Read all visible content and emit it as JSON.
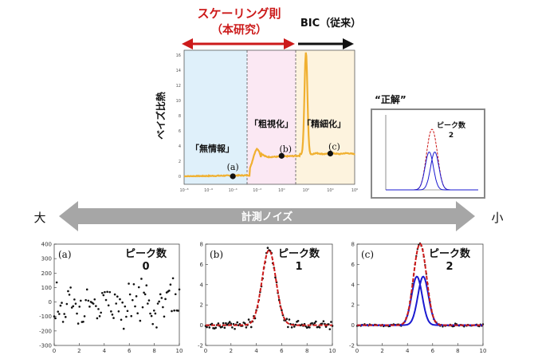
{
  "header": {
    "scaling_law": "スケーリング則",
    "this_work": "（本研究）",
    "bic": "BIC（従来）"
  },
  "top_plot": {
    "ylabel": "ベイズ比熱",
    "regions": [
      {
        "label": "「無情報」",
        "color": "#dff0fa"
      },
      {
        "label": "「粗視化」",
        "color": "#fbe8f3"
      },
      {
        "label": "「精細化」",
        "color": "#fdf3de"
      }
    ],
    "points": [
      {
        "label": "(a)",
        "x_log": -4,
        "y": 0
      },
      {
        "label": "(b)",
        "x_log": 0,
        "y": 2.7
      },
      {
        "label": "(c)",
        "x_log": 4,
        "y": 3.0
      }
    ],
    "y_ticks": [
      "0",
      "2",
      "4",
      "6",
      "8",
      "10",
      "12",
      "14",
      "16"
    ],
    "x_ticks": [
      "10⁻⁸",
      "10⁻⁶",
      "10⁻⁴",
      "10⁻²",
      "10⁰",
      "10²",
      "10⁴",
      "10⁶"
    ],
    "curve_color": "#f0b030"
  },
  "truth": {
    "title": "“正解”",
    "label": "ピーク数",
    "count": "2"
  },
  "noise": {
    "label": "計測ノイズ",
    "left": "大",
    "right": "小"
  },
  "panels": [
    {
      "tag": "(a)",
      "label": "ピーク数",
      "count": "0",
      "y_ticks": [
        "400",
        "300",
        "200",
        "100",
        "0",
        "-100",
        "-200",
        "-300"
      ],
      "x_ticks": [
        "0",
        "2",
        "4",
        "6",
        "8",
        "10"
      ]
    },
    {
      "tag": "(b)",
      "label": "ピーク数",
      "count": "1",
      "y_ticks": [
        "8",
        "6",
        "4",
        "2",
        "0",
        "-2"
      ],
      "x_ticks": [
        "0",
        "2",
        "4",
        "6",
        "8",
        "10"
      ]
    },
    {
      "tag": "(c)",
      "label": "ピーク数",
      "count": "2",
      "y_ticks": [
        "8",
        "6",
        "4",
        "2",
        "0",
        "-2"
      ],
      "x_ticks": [
        "0",
        "2",
        "4",
        "6",
        "8",
        "10"
      ]
    }
  ],
  "colors": {
    "red": "#cc1a1a",
    "blue": "#1a1ad0",
    "gray_arrow": "#a6a6a6"
  }
}
